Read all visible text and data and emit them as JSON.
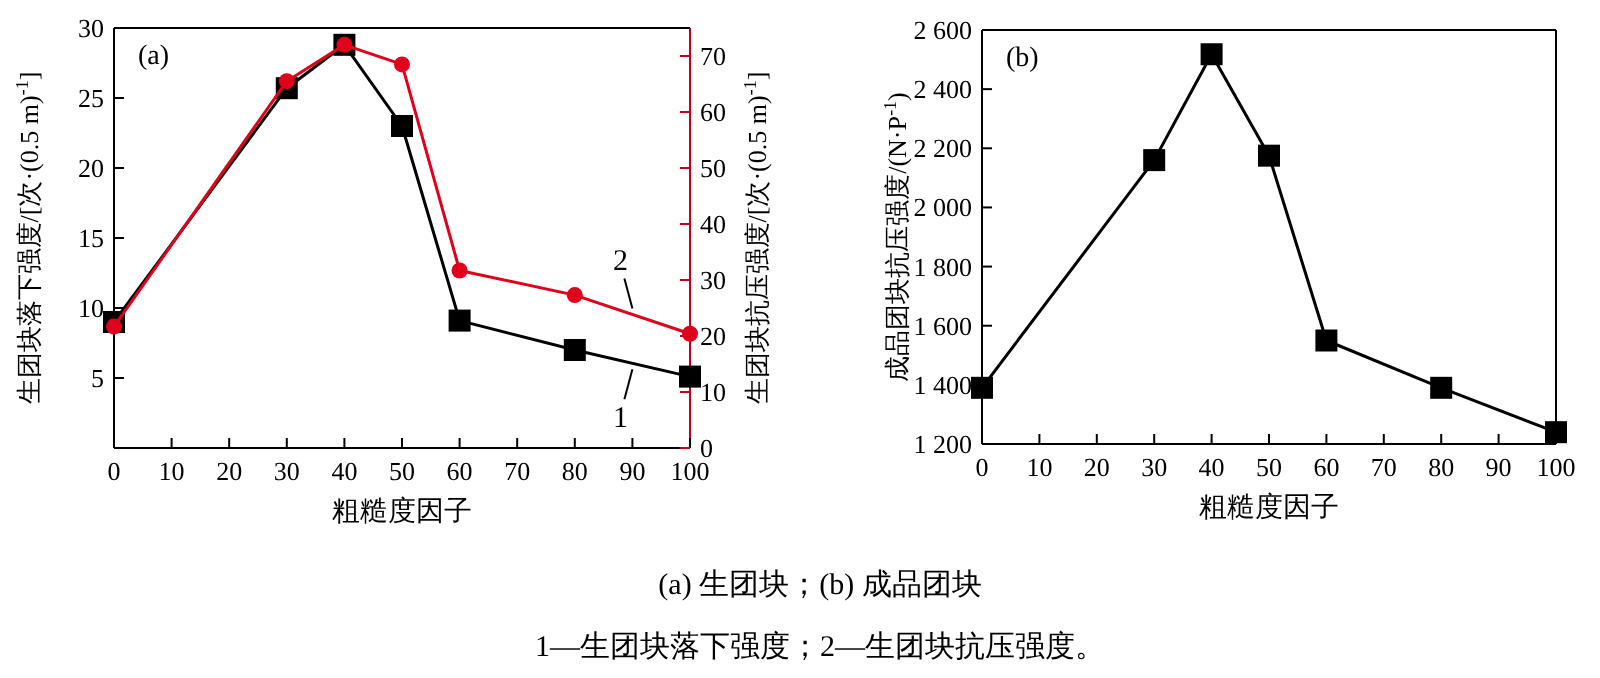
{
  "chart_data": [
    {
      "type": "line",
      "xlabel": "粗糙度因子",
      "ylabel": "生团块落下强度/[次·(0.5 m)$^{-1}$]",
      "y2label": "生团块抗压强度/[次·(0.5 m)$^{-1}$]",
      "x": [
        0,
        30,
        40,
        50,
        60,
        80,
        100
      ],
      "xlim": [
        0,
        100
      ],
      "xticks": [
        0,
        10,
        20,
        30,
        40,
        50,
        60,
        70,
        80,
        90,
        100
      ],
      "ylim": [
        0,
        30
      ],
      "yticks": [
        5,
        10,
        15,
        20,
        25,
        30
      ],
      "y2lim": [
        0,
        75
      ],
      "y2ticks": [
        0,
        10,
        20,
        30,
        40,
        50,
        60,
        70
      ],
      "series": [
        {
          "name": "1",
          "color": "#000000",
          "marker": "square",
          "values": [
            9,
            25.7,
            28.8,
            23,
            9.1,
            7,
            5.1
          ]
        },
        {
          "name": "2",
          "color": "#e0001b",
          "marker": "circle",
          "axis": "y2",
          "values": [
            21.7,
            65.5,
            72,
            68.5,
            31.7,
            27.3,
            20.4
          ]
        }
      ],
      "annotations": [
        "(a)",
        "(a) 生团块；(b) 成品团块",
        "1—生团块落下强度；2—生团块抗压强度。"
      ]
    },
    {
      "type": "line",
      "xlabel": "粗糙度因子",
      "ylabel": "成品团块抗压强度/(N·P$^{-1}$)",
      "x": [
        0,
        30,
        40,
        50,
        60,
        80,
        100
      ],
      "xlim": [
        0,
        100
      ],
      "xticks": [
        0,
        10,
        20,
        30,
        40,
        50,
        60,
        70,
        80,
        90,
        100
      ],
      "ylim": [
        1200,
        2600
      ],
      "yticks": [
        {
          "value": 1200,
          "label": "1 200"
        },
        {
          "value": 1400,
          "label": "1 400"
        },
        {
          "value": 1600,
          "label": "1 600"
        },
        {
          "value": 1800,
          "label": "1 800"
        },
        {
          "value": 2000,
          "label": "2 000"
        },
        {
          "value": 2200,
          "label": "2 200"
        },
        {
          "value": 2400,
          "label": "2 400"
        },
        {
          "value": 2600,
          "label": "2 600"
        }
      ],
      "series": [
        {
          "color": "#000000",
          "marker": "square",
          "values": [
            1390,
            2160,
            2518,
            2175,
            1550,
            1390,
            1240
          ]
        }
      ],
      "annotations": [
        "(b)"
      ]
    }
  ]
}
